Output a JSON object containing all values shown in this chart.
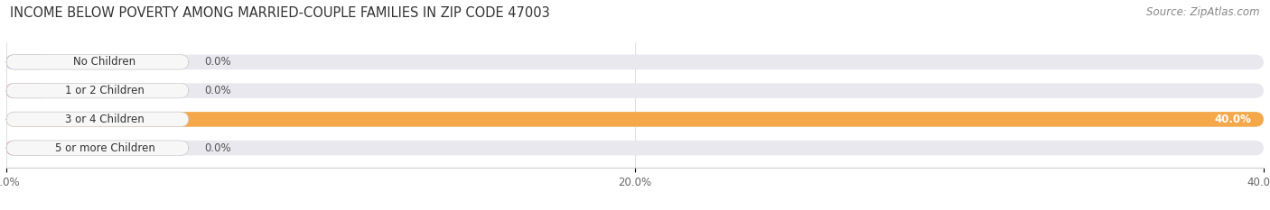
{
  "title": "INCOME BELOW POVERTY AMONG MARRIED-COUPLE FAMILIES IN ZIP CODE 47003",
  "source": "Source: ZipAtlas.com",
  "categories": [
    "No Children",
    "1 or 2 Children",
    "3 or 4 Children",
    "5 or more Children"
  ],
  "values": [
    0.0,
    0.0,
    40.0,
    0.0
  ],
  "bar_colors": [
    "#aaaadd",
    "#f090b0",
    "#f5a84a",
    "#f090b0"
  ],
  "nub_colors": [
    "#aaaadd",
    "#f090b0",
    "#f5a84a",
    "#f090b0"
  ],
  "bg_bar_color": "#e8e8ee",
  "xlim": [
    0,
    40.0
  ],
  "xticks": [
    0.0,
    20.0,
    40.0
  ],
  "xtick_labels": [
    "0.0%",
    "20.0%",
    "40.0%"
  ],
  "title_fontsize": 10.5,
  "source_fontsize": 8.5,
  "label_fontsize": 8.5,
  "value_fontsize": 8.5,
  "bar_height": 0.52,
  "background_color": "#ffffff",
  "label_bg_color": "#f7f7f7"
}
